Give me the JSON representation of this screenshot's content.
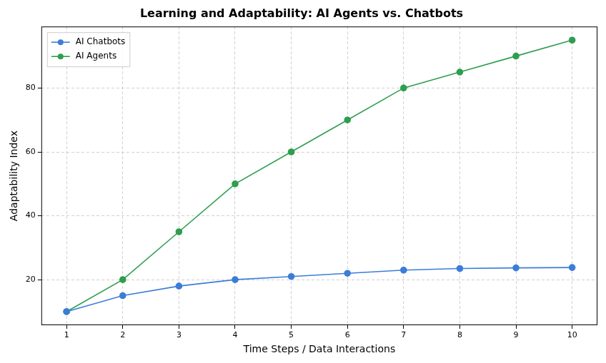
{
  "chart_data": {
    "type": "line",
    "title": "Learning and Adaptability: AI Agents vs. Chatbots",
    "x_label": "Time Steps / Data Interactions",
    "y_label": "Adaptability Index",
    "x": [
      1,
      2,
      3,
      4,
      5,
      6,
      7,
      8,
      9,
      10
    ],
    "series": [
      {
        "name": "AI Chatbots",
        "color": "#3b7dd8",
        "marker": "circle",
        "values": [
          10,
          15,
          18,
          20,
          21,
          22,
          23,
          23.5,
          23.7,
          23.8
        ]
      },
      {
        "name": "AI Agents",
        "color": "#2e9e4f",
        "marker": "circle",
        "values": [
          10,
          20,
          35,
          50,
          60,
          70,
          80,
          85,
          90,
          95
        ]
      }
    ],
    "xlim": [
      0.55,
      10.45
    ],
    "xticks": [
      1,
      2,
      3,
      4,
      5,
      6,
      7,
      8,
      9,
      10
    ],
    "ylim": [
      5.75,
      99.25
    ],
    "yticks": [
      20,
      40,
      60,
      80
    ],
    "grid": true,
    "legend": "upper left"
  }
}
